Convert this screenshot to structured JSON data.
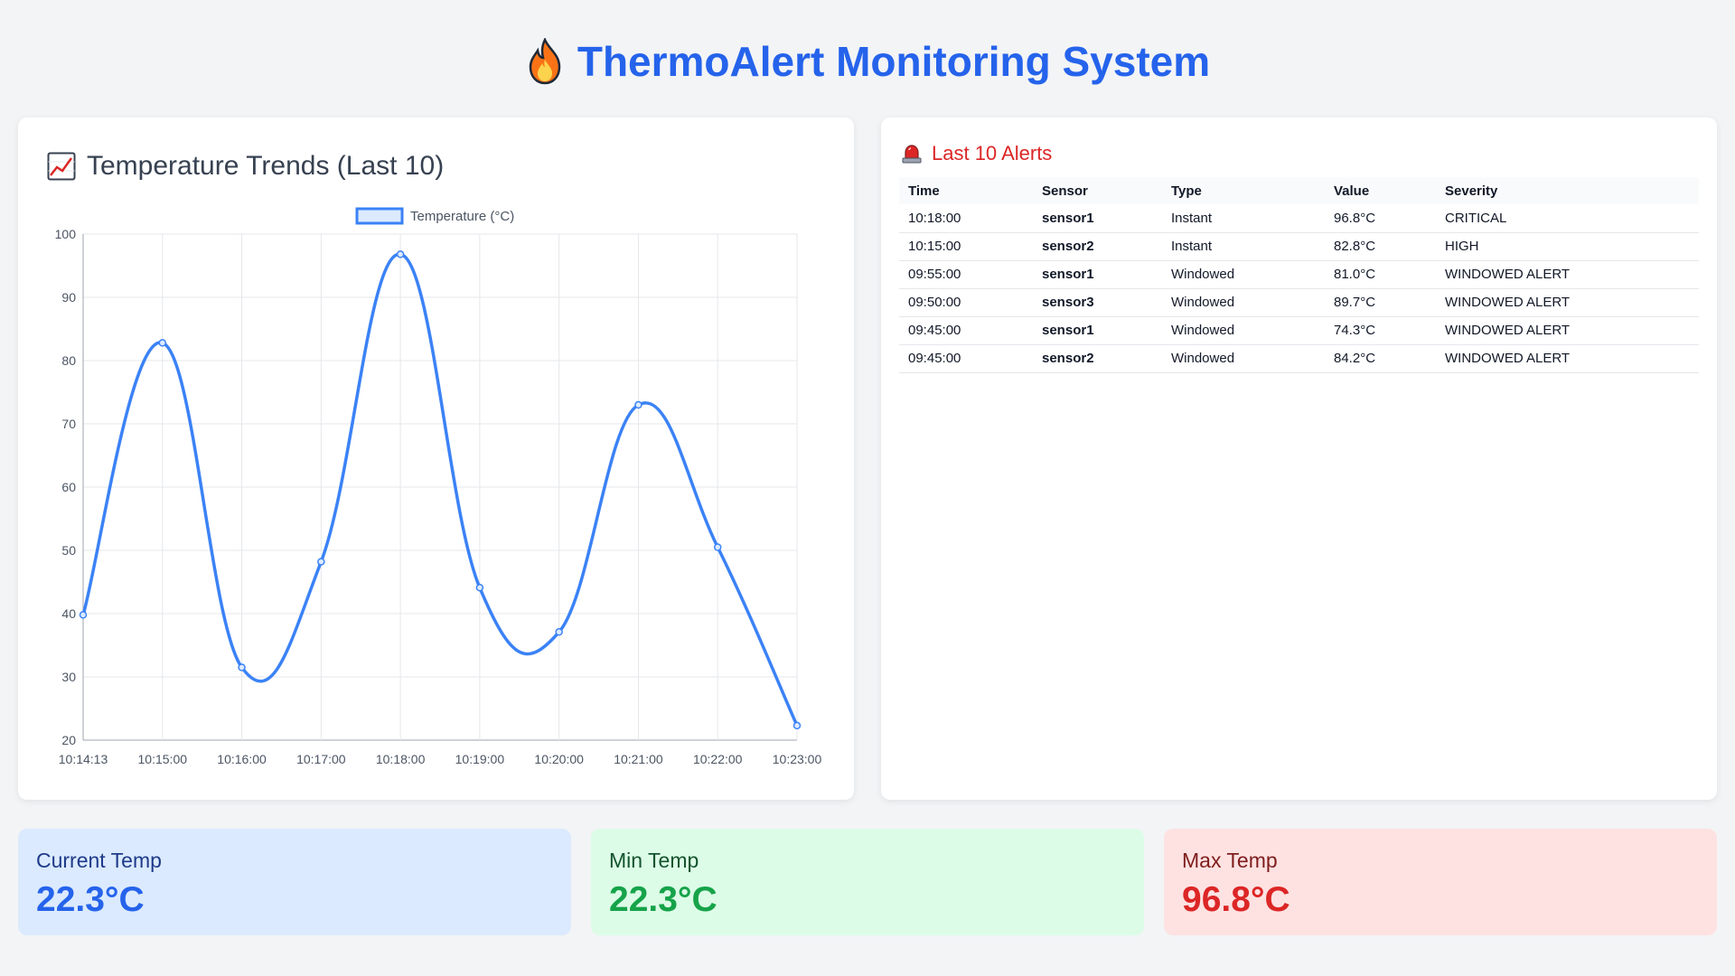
{
  "header": {
    "icon": "fire-icon",
    "title": "ThermoAlert Monitoring System"
  },
  "colors": {
    "accent": "#2563eb",
    "line": "#3b82f6",
    "critical": "#b91c1c",
    "high": "#c2410c",
    "windowed": "#7e22ce"
  },
  "chart_panel": {
    "icon": "chart-increasing-icon",
    "title": "Temperature Trends (Last 10)"
  },
  "chart_data": {
    "type": "line",
    "title": "Temperature Trends (Last 10)",
    "categories": [
      "10:14:13",
      "10:15:00",
      "10:16:00",
      "10:17:00",
      "10:18:00",
      "10:19:00",
      "10:20:00",
      "10:21:00",
      "10:22:00",
      "10:23:00"
    ],
    "series": [
      {
        "name": "Temperature (°C)",
        "values": [
          39.8,
          82.8,
          31.5,
          48.2,
          96.8,
          44.1,
          37.1,
          73.0,
          50.5,
          22.3
        ]
      }
    ],
    "ylim": [
      20,
      100
    ],
    "yticks": [
      "20",
      "30",
      "40",
      "50",
      "60",
      "70",
      "80",
      "90",
      "100"
    ],
    "legend": "top",
    "grid": true
  },
  "alerts_panel": {
    "icon": "siren-icon",
    "title": "Last 10 Alerts",
    "columns": [
      "Time",
      "Sensor",
      "Type",
      "Value",
      "Severity"
    ],
    "rows": [
      {
        "time": "10:18:00",
        "sensor": "sensor1",
        "type": "Instant",
        "value": "96.8°C",
        "severity": "CRITICAL"
      },
      {
        "time": "10:15:00",
        "sensor": "sensor2",
        "type": "Instant",
        "value": "82.8°C",
        "severity": "HIGH"
      },
      {
        "time": "09:55:00",
        "sensor": "sensor1",
        "type": "Windowed",
        "value": "81.0°C",
        "severity": "WINDOWED ALERT"
      },
      {
        "time": "09:50:00",
        "sensor": "sensor3",
        "type": "Windowed",
        "value": "89.7°C",
        "severity": "WINDOWED ALERT"
      },
      {
        "time": "09:45:00",
        "sensor": "sensor1",
        "type": "Windowed",
        "value": "74.3°C",
        "severity": "WINDOWED ALERT"
      },
      {
        "time": "09:45:00",
        "sensor": "sensor2",
        "type": "Windowed",
        "value": "84.2°C",
        "severity": "WINDOWED ALERT"
      }
    ]
  },
  "stats": {
    "current": {
      "label": "Current Temp",
      "value": "22.3°C"
    },
    "min": {
      "label": "Min Temp",
      "value": "22.3°C"
    },
    "max": {
      "label": "Max Temp",
      "value": "96.8°C"
    }
  }
}
